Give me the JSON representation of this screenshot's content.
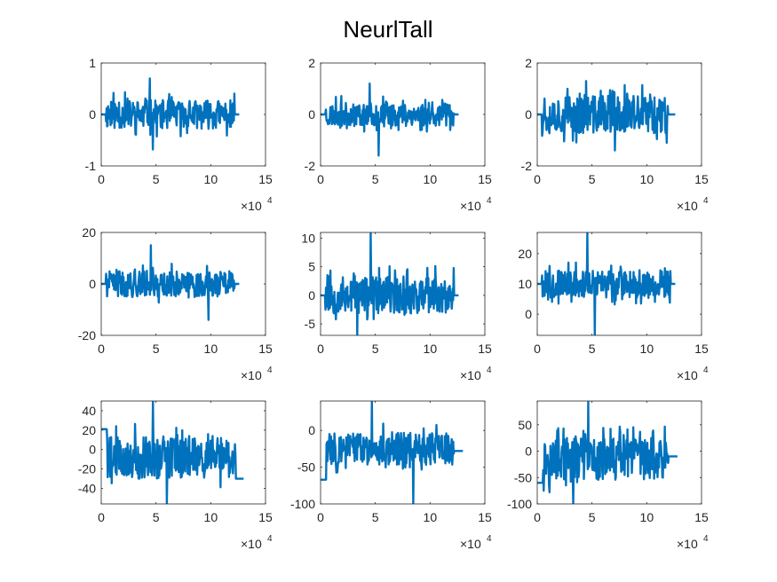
{
  "figure_title": "NeurlTall",
  "series_color": "#0072BD",
  "x_multiplier": {
    "base": "×10",
    "exponent": "4"
  },
  "chart_data": [
    {
      "type": "line",
      "xlim": [
        0,
        15
      ],
      "ylim": [
        -1,
        1
      ],
      "xticks": [
        0,
        5,
        10,
        15
      ],
      "xtick_labels": [
        "0",
        "5",
        "10",
        "15"
      ],
      "yticks": [
        -1,
        0,
        1
      ],
      "ytick_labels": [
        "-1",
        "0",
        "1"
      ],
      "signal": {
        "x_start": 0,
        "x_active_start": 0.4,
        "x_active_end": 12.2,
        "x_end": 12.6,
        "baseline": 0,
        "amplitude": 0.28,
        "spike_high": 0.7,
        "spike_low": -0.68,
        "seed": 11
      }
    },
    {
      "type": "line",
      "xlim": [
        0,
        15
      ],
      "ylim": [
        -2,
        2
      ],
      "xticks": [
        0,
        5,
        10,
        15
      ],
      "xtick_labels": [
        "0",
        "5",
        "10",
        "15"
      ],
      "yticks": [
        -2,
        0,
        2
      ],
      "ytick_labels": [
        "-2",
        "0",
        "2"
      ],
      "signal": {
        "x_start": 0,
        "x_active_start": 0.4,
        "x_active_end": 12.2,
        "x_end": 12.6,
        "baseline": 0,
        "amplitude": 0.45,
        "spike_high": 1.2,
        "spike_low": -1.6,
        "seed": 23
      }
    },
    {
      "type": "line",
      "xlim": [
        0,
        15
      ],
      "ylim": [
        -2,
        2
      ],
      "xticks": [
        0,
        5,
        10,
        15
      ],
      "xtick_labels": [
        "0",
        "5",
        "10",
        "15"
      ],
      "yticks": [
        -2,
        0,
        2
      ],
      "ytick_labels": [
        "-2",
        "0",
        "2"
      ],
      "signal": {
        "x_start": 0,
        "x_active_start": 0.4,
        "x_active_end": 12.0,
        "x_end": 12.6,
        "baseline": 0,
        "amplitude": 0.75,
        "spike_high": 1.3,
        "spike_low": -1.4,
        "seed": 37
      }
    },
    {
      "type": "line",
      "xlim": [
        0,
        15
      ],
      "ylim": [
        -20,
        20
      ],
      "xticks": [
        0,
        5,
        10,
        15
      ],
      "xtick_labels": [
        "0",
        "5",
        "10",
        "15"
      ],
      "yticks": [
        -20,
        0,
        20
      ],
      "ytick_labels": [
        "-20",
        "0",
        "20"
      ],
      "signal": {
        "x_start": 0,
        "x_active_start": 0.4,
        "x_active_end": 12.2,
        "x_end": 12.6,
        "baseline": 0,
        "amplitude": 5,
        "spike_high": 15,
        "spike_low": -14,
        "seed": 41
      }
    },
    {
      "type": "line",
      "xlim": [
        0,
        15
      ],
      "ylim": [
        -7,
        11
      ],
      "xticks": [
        0,
        5,
        10,
        15
      ],
      "xtick_labels": [
        "0",
        "5",
        "10",
        "15"
      ],
      "yticks": [
        -5,
        0,
        5,
        10
      ],
      "ytick_labels": [
        "-5",
        "0",
        "5",
        "10"
      ],
      "signal": {
        "x_start": 0,
        "x_active_start": 0.4,
        "x_active_end": 12.2,
        "x_end": 12.6,
        "baseline": 0,
        "amplitude": 3.2,
        "spike_high": 11,
        "spike_low": -7,
        "seed": 53
      }
    },
    {
      "type": "line",
      "xlim": [
        0,
        15
      ],
      "ylim": [
        -7,
        27
      ],
      "xticks": [
        0,
        5,
        10,
        15
      ],
      "xtick_labels": [
        "0",
        "5",
        "10",
        "15"
      ],
      "yticks": [
        0,
        10,
        20
      ],
      "ytick_labels": [
        "0",
        "10",
        "20"
      ],
      "signal": {
        "x_start": 0,
        "x_active_start": 0.4,
        "x_active_end": 12.2,
        "x_end": 12.6,
        "baseline": 10,
        "amplitude": 4.5,
        "spike_high": 27,
        "spike_low": -7,
        "seed": 67
      }
    },
    {
      "type": "line",
      "xlim": [
        0,
        15
      ],
      "ylim": [
        -56,
        50
      ],
      "xticks": [
        0,
        5,
        10,
        15
      ],
      "xtick_labels": [
        "0",
        "5",
        "10",
        "15"
      ],
      "yticks": [
        -40,
        -20,
        0,
        20,
        40
      ],
      "ytick_labels": [
        "-40",
        "-20",
        "0",
        "20",
        "40"
      ],
      "signal": {
        "x_start": 0,
        "x_active_start": 0.5,
        "x_active_end": 12.3,
        "x_end": 13.0,
        "baseline": -8,
        "start_level": 21,
        "end_level": -30,
        "amplitude": 22,
        "spike_high": 50,
        "spike_low": -56,
        "seed": 79
      }
    },
    {
      "type": "line",
      "xlim": [
        0,
        15
      ],
      "ylim": [
        -100,
        40
      ],
      "xticks": [
        0,
        5,
        10,
        15
      ],
      "xtick_labels": [
        "0",
        "5",
        "10",
        "15"
      ],
      "yticks": [
        -100,
        -50,
        0
      ],
      "ytick_labels": [
        "-100",
        "-50",
        "0"
      ],
      "signal": {
        "x_start": 0,
        "x_active_start": 0.5,
        "x_active_end": 12.2,
        "x_end": 13.0,
        "baseline": -25,
        "start_level": -67,
        "end_level": -28,
        "amplitude": 22,
        "spike_high": 40,
        "spike_low": -100,
        "seed": 83
      }
    },
    {
      "type": "line",
      "xlim": [
        0,
        15
      ],
      "ylim": [
        -100,
        95
      ],
      "xticks": [
        0,
        5,
        10,
        15
      ],
      "xtick_labels": [
        "0",
        "5",
        "10",
        "15"
      ],
      "yticks": [
        -100,
        -50,
        0,
        50
      ],
      "ytick_labels": [
        "-100",
        "-50",
        "0",
        "50"
      ],
      "signal": {
        "x_start": 0,
        "x_active_start": 0.5,
        "x_active_end": 12.0,
        "x_end": 12.8,
        "baseline": -15,
        "start_level": -60,
        "end_level": -10,
        "amplitude": 40,
        "spike_high": 95,
        "spike_low": -100,
        "seed": 97
      }
    }
  ]
}
